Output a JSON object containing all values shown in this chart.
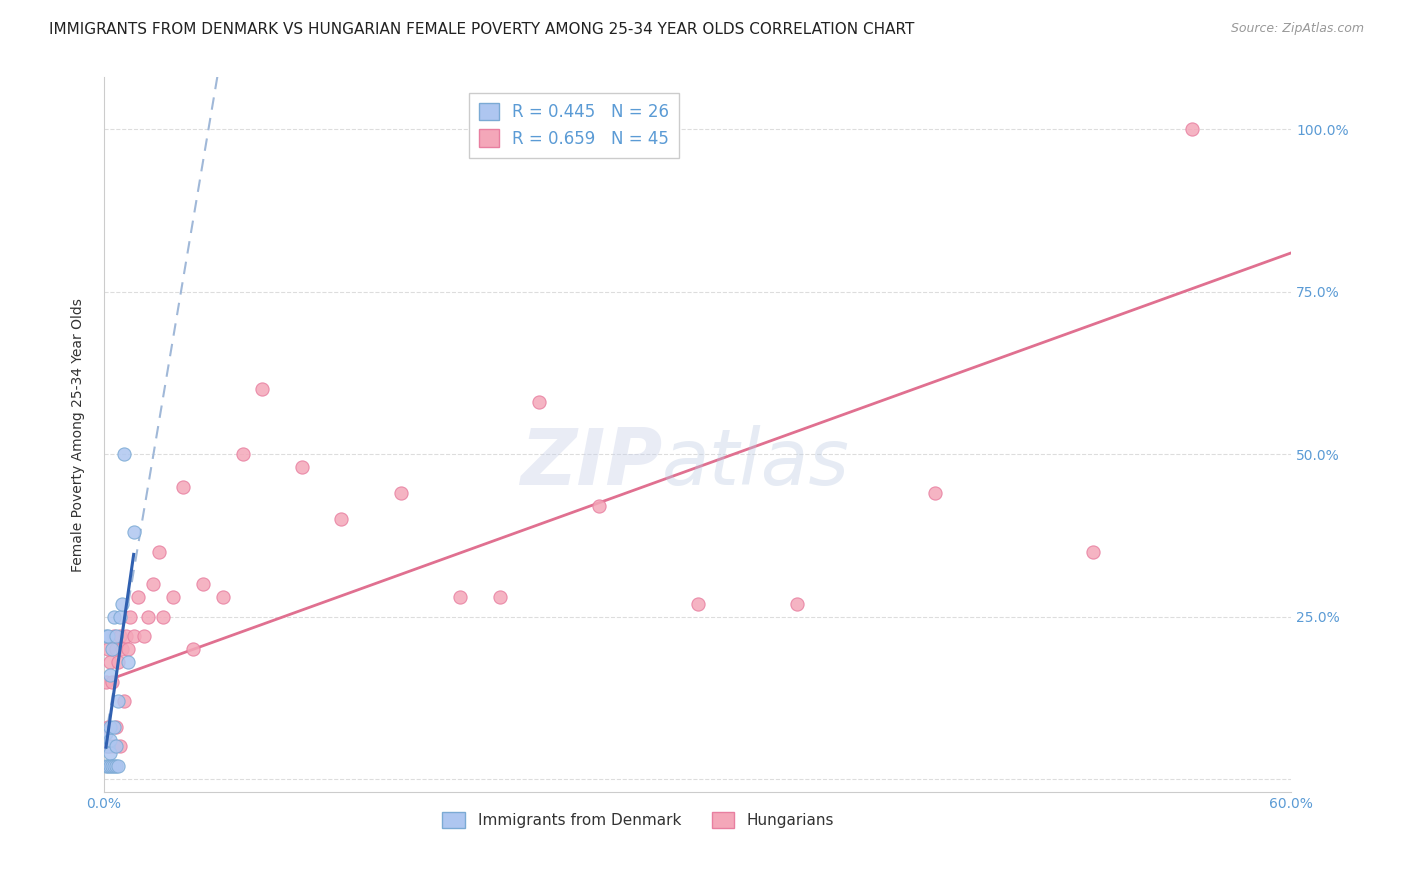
{
  "title": "IMMIGRANTS FROM DENMARK VS HUNGARIAN FEMALE POVERTY AMONG 25-34 YEAR OLDS CORRELATION CHART",
  "source": "Source: ZipAtlas.com",
  "ylabel": "Female Poverty Among 25-34 Year Olds",
  "xlim": [
    0.0,
    0.6
  ],
  "ylim": [
    -0.02,
    1.08
  ],
  "xticks": [
    0.0,
    0.1,
    0.2,
    0.3,
    0.4,
    0.5,
    0.6
  ],
  "xticklabels": [
    "0.0%",
    "",
    "",
    "",
    "",
    "",
    "60.0%"
  ],
  "yticks_right": [
    0.0,
    0.25,
    0.5,
    0.75,
    1.0
  ],
  "yticklabels_right": [
    "",
    "25.0%",
    "50.0%",
    "75.0%",
    "100.0%"
  ],
  "denmark_color": "#aec6f0",
  "denmark_edge": "#7baad4",
  "hungarian_color": "#f4a7b9",
  "hungarian_edge": "#e87fa0",
  "denmark_R": 0.445,
  "denmark_N": 26,
  "hungarian_R": 0.659,
  "hungarian_N": 45,
  "legend_label_denmark": "Immigrants from Denmark",
  "legend_label_hungarian": "Hungarians",
  "watermark_zip": "ZIP",
  "watermark_atlas": "atlas",
  "denmark_scatter_x": [
    0.001,
    0.001,
    0.001,
    0.002,
    0.002,
    0.002,
    0.003,
    0.003,
    0.003,
    0.003,
    0.003,
    0.004,
    0.004,
    0.005,
    0.005,
    0.005,
    0.006,
    0.006,
    0.006,
    0.007,
    0.007,
    0.008,
    0.009,
    0.01,
    0.012,
    0.015
  ],
  "denmark_scatter_y": [
    0.02,
    0.07,
    0.22,
    0.02,
    0.05,
    0.22,
    0.02,
    0.04,
    0.06,
    0.08,
    0.16,
    0.02,
    0.2,
    0.02,
    0.08,
    0.25,
    0.02,
    0.05,
    0.22,
    0.02,
    0.12,
    0.25,
    0.27,
    0.5,
    0.18,
    0.38
  ],
  "hungarian_scatter_x": [
    0.001,
    0.001,
    0.002,
    0.002,
    0.003,
    0.003,
    0.004,
    0.005,
    0.005,
    0.006,
    0.006,
    0.007,
    0.008,
    0.008,
    0.009,
    0.01,
    0.011,
    0.012,
    0.013,
    0.015,
    0.017,
    0.02,
    0.022,
    0.025,
    0.028,
    0.03,
    0.035,
    0.04,
    0.045,
    0.05,
    0.06,
    0.07,
    0.08,
    0.1,
    0.12,
    0.15,
    0.18,
    0.2,
    0.22,
    0.25,
    0.3,
    0.35,
    0.42,
    0.5,
    0.55
  ],
  "hungarian_scatter_y": [
    0.05,
    0.15,
    0.08,
    0.2,
    0.05,
    0.18,
    0.15,
    0.05,
    0.22,
    0.08,
    0.2,
    0.18,
    0.05,
    0.22,
    0.2,
    0.12,
    0.22,
    0.2,
    0.25,
    0.22,
    0.28,
    0.22,
    0.25,
    0.3,
    0.35,
    0.25,
    0.28,
    0.45,
    0.2,
    0.3,
    0.28,
    0.5,
    0.6,
    0.48,
    0.4,
    0.44,
    0.28,
    0.28,
    0.58,
    0.42,
    0.27,
    0.27,
    0.44,
    0.35,
    1.0
  ],
  "background_color": "#ffffff",
  "grid_color": "#dddddd",
  "axis_color": "#cccccc",
  "right_axis_color": "#5b9bd5",
  "denmark_trend_color": "#a0b8d8",
  "hungarian_trend_color": "#e07090",
  "denmark_solid_color": "#3060b0",
  "title_fontsize": 11,
  "label_fontsize": 10,
  "tick_fontsize": 10,
  "marker_size": 90,
  "denmark_trend_intercept": 0.05,
  "denmark_trend_slope": 18.0,
  "hungarian_trend_intercept": 0.15,
  "hungarian_trend_slope": 1.1
}
